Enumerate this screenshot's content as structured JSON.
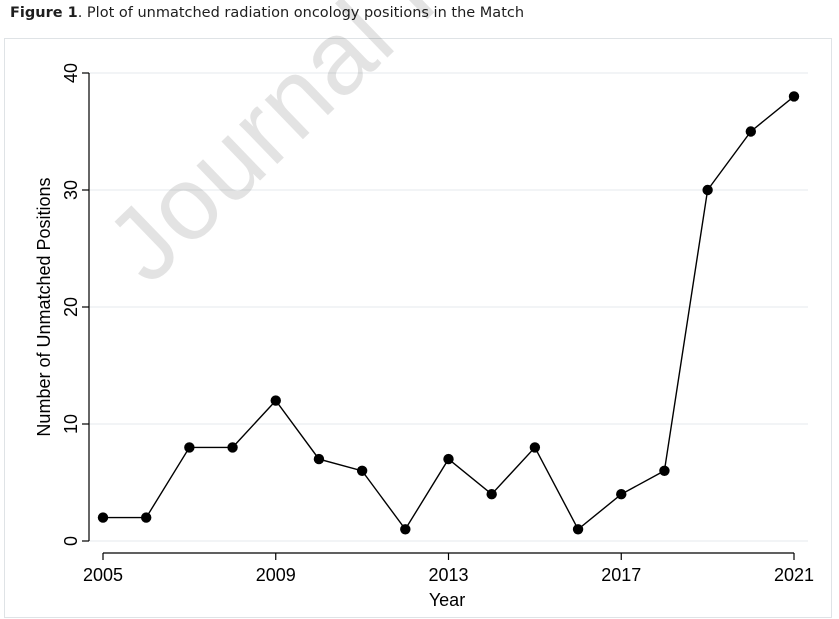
{
  "caption": {
    "label": "Figure 1",
    "text": ". Plot of unmatched radiation oncology positions in the Match"
  },
  "watermark": "Journal Pre-proof",
  "chart_data": {
    "type": "line",
    "title": "",
    "xlabel": "Year",
    "ylabel": "Number of Unmatched Positions",
    "x": [
      2005,
      2006,
      2007,
      2008,
      2009,
      2010,
      2011,
      2012,
      2013,
      2014,
      2015,
      2016,
      2017,
      2018,
      2019,
      2020,
      2021
    ],
    "series": [
      {
        "values": [
          2,
          2,
          8,
          8,
          12,
          7,
          6,
          1,
          7,
          4,
          8,
          1,
          4,
          6,
          30,
          35,
          38
        ]
      }
    ],
    "xticks": [
      2005,
      2009,
      2013,
      2017,
      2021
    ],
    "yticks": [
      0,
      10,
      20,
      30,
      40
    ],
    "xlim": [
      2005,
      2021
    ],
    "ylim": [
      0,
      40
    ],
    "grid": true,
    "marker": "filled-circle",
    "line_color": "#000000",
    "grid_color": "#e6eaed"
  }
}
